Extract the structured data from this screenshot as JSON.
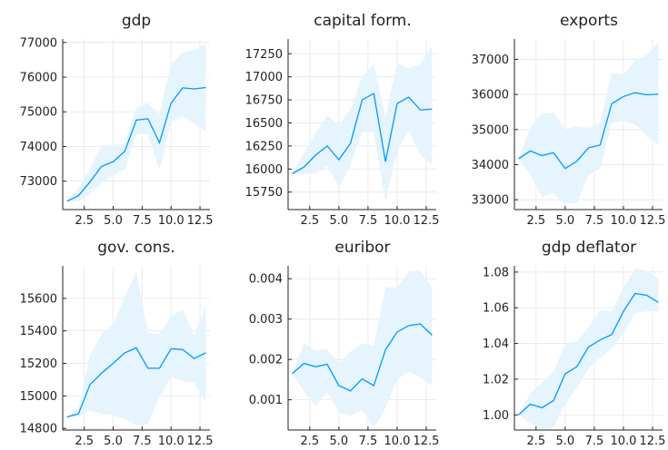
{
  "chart_data": [
    {
      "type": "line",
      "title": "gdp",
      "x": [
        1,
        2,
        3,
        4,
        5,
        6,
        7,
        8,
        9,
        10,
        11,
        12,
        13
      ],
      "series": [
        {
          "values": [
            72420,
            72580,
            72980,
            73430,
            73560,
            73860,
            74760,
            74800,
            74110,
            75250,
            75690,
            75660,
            75700
          ]
        }
      ],
      "band_lower": [
        72420,
        72420,
        72640,
        72930,
        73170,
        73320,
        74360,
        74360,
        73320,
        74700,
        74860,
        74660,
        74440
      ],
      "band_upper": [
        72420,
        72810,
        73360,
        74020,
        74050,
        74080,
        75120,
        75260,
        74920,
        76380,
        76700,
        76790,
        76960
      ],
      "xticks": [
        "2.5",
        "5.0",
        "7.5",
        "10.0",
        "12.5"
      ],
      "xtick_values": [
        2.5,
        5,
        7.5,
        10,
        12.5
      ],
      "yticks": [
        "73000",
        "74000",
        "75000",
        "76000",
        "77000"
      ],
      "ytick_values": [
        73000,
        74000,
        75000,
        76000,
        77000
      ],
      "xlim": [
        0.64,
        13.36
      ],
      "ylim": [
        72180,
        77100
      ],
      "color": "#009af9",
      "band_color": "#e6f4fe",
      "grid": true
    },
    {
      "type": "line",
      "title": "capital form.",
      "x": [
        1,
        2,
        3,
        4,
        5,
        6,
        7,
        8,
        9,
        10,
        11,
        12,
        13
      ],
      "series": [
        {
          "values": [
            15950,
            16020,
            16150,
            16250,
            16100,
            16280,
            16750,
            16820,
            16080,
            16710,
            16780,
            16640,
            16650
          ]
        }
      ],
      "band_lower": [
        15950,
        15950,
        15950,
        16030,
        15800,
        16050,
        16400,
        16400,
        15640,
        16200,
        16420,
        16150,
        16050
      ],
      "band_upper": [
        15950,
        16180,
        16390,
        16580,
        16480,
        16650,
        17000,
        17140,
        16570,
        17150,
        17090,
        17140,
        17340
      ],
      "xticks": [
        "2.5",
        "5.0",
        "7.5",
        "10.0",
        "12.5"
      ],
      "xtick_values": [
        2.5,
        5,
        7.5,
        10,
        12.5
      ],
      "yticks": [
        "15750",
        "16000",
        "16250",
        "16500",
        "16750",
        "17000",
        "17250"
      ],
      "ytick_values": [
        15750,
        16000,
        16250,
        16500,
        16750,
        17000,
        17250
      ],
      "xlim": [
        0.64,
        13.36
      ],
      "ylim": [
        15560,
        17410
      ],
      "color": "#009af9",
      "band_color": "#e6f4fe",
      "grid": true
    },
    {
      "type": "line",
      "title": "exports",
      "x": [
        1,
        2,
        3,
        4,
        5,
        6,
        7,
        8,
        9,
        10,
        11,
        12,
        13
      ],
      "series": [
        {
          "values": [
            34170,
            34390,
            34260,
            34340,
            33890,
            34100,
            34480,
            34560,
            35740,
            35940,
            36050,
            35990,
            36010
          ]
        }
      ],
      "band_lower": [
        34170,
        33730,
        33080,
        33190,
        32890,
        32910,
        33700,
        33900,
        35190,
        35240,
        35150,
        34840,
        34570
      ],
      "band_upper": [
        34170,
        35030,
        35460,
        35480,
        35000,
        35090,
        35040,
        35200,
        36620,
        36560,
        36980,
        37120,
        37490
      ],
      "xticks": [
        "2.5",
        "5.0",
        "7.5",
        "10.0",
        "12.5"
      ],
      "xtick_values": [
        2.5,
        5,
        7.5,
        10,
        12.5
      ],
      "yticks": [
        "33000",
        "34000",
        "35000",
        "36000",
        "37000"
      ],
      "ytick_values": [
        33000,
        34000,
        35000,
        36000,
        37000
      ],
      "xlim": [
        0.64,
        13.36
      ],
      "ylim": [
        32720,
        37580
      ],
      "color": "#009af9",
      "band_color": "#e6f4fe",
      "grid": true
    },
    {
      "type": "line",
      "title": "gov. cons.",
      "x": [
        1,
        2,
        3,
        4,
        5,
        6,
        7,
        8,
        9,
        10,
        11,
        12,
        13
      ],
      "series": [
        {
          "values": [
            14870,
            14890,
            15070,
            15140,
            15200,
            15265,
            15295,
            15170,
            15170,
            15290,
            15285,
            15230,
            15265
          ]
        }
      ],
      "band_lower": [
        14870,
        14870,
        14910,
        14890,
        14880,
        14860,
        14820,
        14830,
        14990,
        15120,
        15090,
        15080,
        14960
      ],
      "band_upper": [
        14870,
        14920,
        15250,
        15380,
        15440,
        15610,
        15760,
        15390,
        15380,
        15490,
        15530,
        15370,
        15560
      ],
      "xticks": [
        "2.5",
        "5.0",
        "7.5",
        "10.0",
        "12.5"
      ],
      "xtick_values": [
        2.5,
        5,
        7.5,
        10,
        12.5
      ],
      "yticks": [
        "14800",
        "15000",
        "15200",
        "15400",
        "15600"
      ],
      "ytick_values": [
        14800,
        15000,
        15200,
        15400,
        15600
      ],
      "xlim": [
        0.64,
        13.36
      ],
      "ylim": [
        14790,
        15800
      ],
      "color": "#009af9",
      "band_color": "#e6f4fe",
      "grid": true
    },
    {
      "type": "line",
      "title": "euribor",
      "x": [
        1,
        2,
        3,
        4,
        5,
        6,
        7,
        8,
        9,
        10,
        11,
        12,
        13
      ],
      "series": [
        {
          "values": [
            0.00165,
            0.0019,
            0.00182,
            0.00188,
            0.00135,
            0.00122,
            0.00152,
            0.00135,
            0.00224,
            0.00268,
            0.00284,
            0.00288,
            0.0026
          ]
        }
      ],
      "band_lower": [
        0.00165,
        0.0012,
        0.00085,
        0.0012,
        0.00068,
        0.0006,
        0.00075,
        0.0003,
        0.0008,
        0.0015,
        0.0017,
        0.00155,
        0.00135
      ],
      "band_upper": [
        0.00165,
        0.0024,
        0.00222,
        0.00225,
        0.0019,
        0.0022,
        0.0024,
        0.00235,
        0.0038,
        0.00378,
        0.00418,
        0.0042,
        0.00378
      ],
      "xticks": [
        "2.5",
        "5.0",
        "7.5",
        "10.0",
        "12.5"
      ],
      "xtick_values": [
        2.5,
        5,
        7.5,
        10,
        12.5
      ],
      "yticks": [
        "0.001",
        "0.002",
        "0.003",
        "0.004"
      ],
      "ytick_values": [
        0.001,
        0.002,
        0.003,
        0.004
      ],
      "xlim": [
        0.64,
        13.36
      ],
      "ylim": [
        0.00025,
        0.00432
      ],
      "color": "#009af9",
      "band_color": "#e6f4fe",
      "grid": true
    },
    {
      "type": "line",
      "title": "gdp deflator",
      "x": [
        1,
        2,
        3,
        4,
        5,
        6,
        7,
        8,
        9,
        10,
        11,
        12,
        13
      ],
      "series": [
        {
          "values": [
            1.0,
            1.006,
            1.004,
            1.008,
            1.023,
            1.027,
            1.038,
            1.042,
            1.045,
            1.058,
            1.068,
            1.067,
            1.063
          ]
        }
      ],
      "band_lower": [
        1.0,
        0.995,
        0.992,
        0.993,
        1.006,
        1.015,
        1.026,
        1.032,
        1.037,
        1.046,
        1.057,
        1.058,
        1.058
      ],
      "band_upper": [
        1.0,
        1.012,
        1.018,
        1.024,
        1.04,
        1.041,
        1.049,
        1.059,
        1.058,
        1.071,
        1.082,
        1.081,
        1.076
      ],
      "xticks": [
        "2.5",
        "5.0",
        "7.5",
        "10.0",
        "12.5"
      ],
      "xtick_values": [
        2.5,
        5,
        7.5,
        10,
        12.5
      ],
      "yticks": [
        "1.00",
        "1.02",
        "1.04",
        "1.06",
        "1.08"
      ],
      "ytick_values": [
        1.0,
        1.02,
        1.04,
        1.06,
        1.08
      ],
      "xlim": [
        0.64,
        13.36
      ],
      "ylim": [
        0.9915,
        1.0835
      ],
      "color": "#009af9",
      "band_color": "#e6f4fe",
      "grid": true
    }
  ]
}
